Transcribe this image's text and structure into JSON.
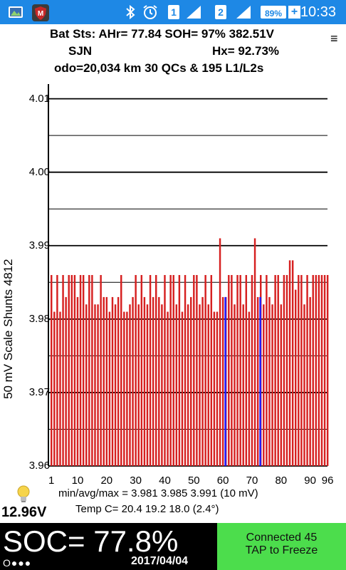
{
  "status_bar": {
    "icons": [
      "gallery-icon",
      "shield-app-icon",
      "bluetooth-icon",
      "alarm-icon",
      "sim1-icon",
      "signal-icon",
      "sim2-icon",
      "signal-icon",
      "battery-icon",
      "charging-icon"
    ],
    "sim1": "1",
    "sim2": "2",
    "battery_pct": "89%",
    "charging_symbol": "+",
    "time": "10:33"
  },
  "header": {
    "line1": "Bat Sts: AHr= 77.84 SOH= 97% 382.51V",
    "line2_left": "SJN",
    "line2_right": "Hx= 92.73%",
    "line3": "odo=20,034 km 30 QCs & 195 L1/L2s",
    "menu_symbol": "≡"
  },
  "chart_data": {
    "type": "bar",
    "ylabel": "50 mV Scale   Shunts 4812",
    "ylim": [
      3.96,
      4.012
    ],
    "y_ticks": [
      "4.01",
      "4.00",
      "3.99",
      "3.98",
      "3.97",
      "3.96"
    ],
    "x_ticks": [
      "1",
      "10",
      "20",
      "30",
      "40",
      "50",
      "60",
      "70",
      "80",
      "90",
      "96"
    ],
    "grid": true,
    "values": [
      3.986,
      3.981,
      3.986,
      3.981,
      3.986,
      3.983,
      3.986,
      3.986,
      3.986,
      3.983,
      3.986,
      3.986,
      3.982,
      3.986,
      3.986,
      3.982,
      3.982,
      3.986,
      3.983,
      3.983,
      3.981,
      3.983,
      3.982,
      3.983,
      3.986,
      3.981,
      3.981,
      3.982,
      3.983,
      3.986,
      3.982,
      3.986,
      3.983,
      3.982,
      3.986,
      3.983,
      3.986,
      3.983,
      3.982,
      3.986,
      3.981,
      3.986,
      3.986,
      3.982,
      3.986,
      3.981,
      3.986,
      3.982,
      3.983,
      3.986,
      3.986,
      3.982,
      3.983,
      3.986,
      3.982,
      3.986,
      3.981,
      3.981,
      3.991,
      3.983,
      3.983,
      3.986,
      3.986,
      3.982,
      3.986,
      3.986,
      3.982,
      3.986,
      3.981,
      3.986,
      3.991,
      3.983,
      3.986,
      3.982,
      3.986,
      3.983,
      3.982,
      3.986,
      3.986,
      3.982,
      3.986,
      3.986,
      3.988,
      3.988,
      3.984,
      3.986,
      3.986,
      3.982,
      3.986,
      3.983,
      3.986,
      3.986,
      3.986,
      3.986,
      3.986,
      3.986
    ],
    "highlight_series": {
      "color": "#1a1aff",
      "positions": [
        60,
        72
      ],
      "values": [
        3.983,
        3.983
      ]
    },
    "bar_color": "#d62020"
  },
  "stats": {
    "minavgmax": "min/avg/max = 3.981  3.985  3.991  (10 mV)",
    "temp": "Temp C= 20.4  19.2  18.0  (2.4°)"
  },
  "footer": {
    "voltage": "12.96V",
    "soc": "SOC= 77.8%",
    "dots": "O●●●",
    "date": "2017/04/04",
    "connected": "Connected 45",
    "tap": "TAP to Freeze"
  },
  "colors": {
    "status_bar": "#1e88e5",
    "connect_button": "#4cdd4c"
  }
}
